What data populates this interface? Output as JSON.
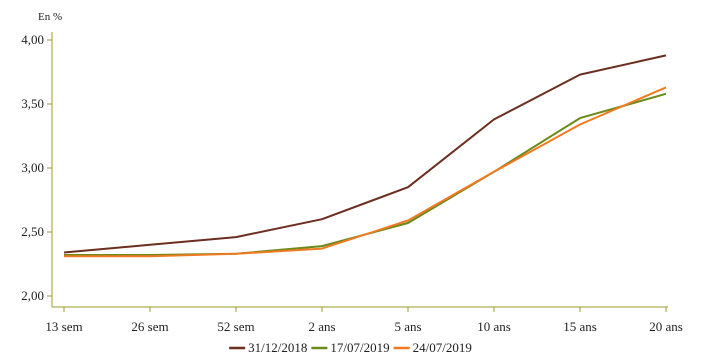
{
  "chart_data": {
    "type": "line",
    "unit_label": "En %",
    "categories": [
      "13 sem",
      "26 sem",
      "52 sem",
      "2 ans",
      "5 ans",
      "10 ans",
      "15 ans",
      "20 ans"
    ],
    "y_ticks": [
      "2,00",
      "2,50",
      "3,00",
      "3,50",
      "4,00"
    ],
    "ylim": [
      2.0,
      4.0
    ],
    "grid": false,
    "legend_position": "bottom",
    "axis_color": "#9b9b2c",
    "series": [
      {
        "name": "31/12/2018",
        "color": "#6b2e1f",
        "values": [
          2.34,
          2.4,
          2.46,
          2.6,
          2.85,
          3.38,
          3.73,
          3.88
        ]
      },
      {
        "name": "17/07/2019",
        "color": "#6a8a1a",
        "values": [
          2.32,
          2.32,
          2.33,
          2.39,
          2.57,
          2.97,
          3.39,
          3.58
        ]
      },
      {
        "name": "24/07/2019",
        "color": "#ef7a22",
        "values": [
          2.31,
          2.31,
          2.33,
          2.37,
          2.59,
          2.97,
          3.34,
          3.63
        ]
      }
    ]
  }
}
